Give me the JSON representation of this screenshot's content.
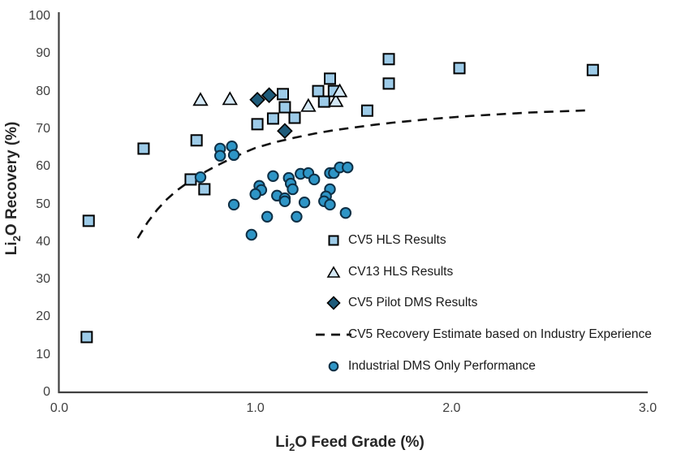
{
  "chart_data": {
    "type": "scatter",
    "title": "",
    "xlabel_parts": {
      "prefix": "Li",
      "sub": "2",
      "suffix": "O Feed Grade (%)"
    },
    "ylabel_parts": {
      "prefix": "Li",
      "sub": "2",
      "suffix": "O Recovery (%)"
    },
    "x_axis": {
      "min": 0,
      "max": 3,
      "tick_labels": [
        "0.0",
        "1.0",
        "2.0",
        "3.0"
      ],
      "tick_values": [
        0,
        1,
        2,
        3
      ]
    },
    "y_axis": {
      "min": 0,
      "max": 100,
      "tick_labels": [
        "0",
        "10",
        "20",
        "30",
        "40",
        "50",
        "60",
        "70",
        "80",
        "90",
        "100"
      ],
      "tick_values": [
        0,
        10,
        20,
        30,
        40,
        50,
        60,
        70,
        80,
        90,
        100
      ]
    },
    "grid": false,
    "legend_position": "inside-right-middle",
    "colors": {
      "axis": "#404040",
      "square_fill": "#9DCBE8",
      "triangle_fill": "#D3E7F4",
      "diamond_fill": "#1E5B7A",
      "circle_fill": "#2E95C6",
      "circle_stroke": "#0E2F45",
      "marker_stroke": "#000000",
      "estimate_line": "#111111"
    },
    "series": [
      {
        "name": "CV5 HLS Results",
        "marker": "square",
        "points": [
          [
            0.15,
            45.6
          ],
          [
            0.14,
            14.7
          ],
          [
            0.43,
            64.8
          ],
          [
            0.7,
            67.0
          ],
          [
            0.67,
            56.6
          ],
          [
            0.74,
            54.0
          ],
          [
            1.01,
            71.3
          ],
          [
            1.09,
            72.8
          ],
          [
            1.14,
            79.3
          ],
          [
            1.15,
            75.8
          ],
          [
            1.2,
            73.0
          ],
          [
            1.32,
            80.1
          ],
          [
            1.35,
            77.3
          ],
          [
            1.38,
            83.4
          ],
          [
            1.4,
            80.1
          ],
          [
            1.57,
            74.9
          ],
          [
            1.68,
            88.6
          ],
          [
            1.68,
            82.1
          ],
          [
            2.04,
            86.2
          ],
          [
            2.72,
            85.7
          ]
        ]
      },
      {
        "name": "CV13 HLS Results",
        "marker": "triangle",
        "points": [
          [
            0.72,
            77.8
          ],
          [
            0.87,
            78.0
          ],
          [
            1.27,
            76.2
          ],
          [
            1.41,
            77.5
          ],
          [
            1.43,
            80.1
          ]
        ]
      },
      {
        "name": "CV5 Pilot DMS Results",
        "marker": "diamond",
        "points": [
          [
            1.01,
            77.8
          ],
          [
            1.07,
            79.0
          ],
          [
            1.15,
            69.5
          ]
        ]
      },
      {
        "name": "CV5 Recovery Estimate based on Industry Experience",
        "marker": "dashed-line",
        "curve_points": [
          [
            0.4,
            41.0
          ],
          [
            0.45,
            45.2
          ],
          [
            0.5,
            48.6
          ],
          [
            0.55,
            51.4
          ],
          [
            0.6,
            53.7
          ],
          [
            0.65,
            55.6
          ],
          [
            0.7,
            57.3
          ],
          [
            0.75,
            58.8
          ],
          [
            0.8,
            60.2
          ],
          [
            0.85,
            61.5
          ],
          [
            0.9,
            62.7
          ],
          [
            0.95,
            63.9
          ],
          [
            1.0,
            65.0
          ],
          [
            1.1,
            66.5
          ],
          [
            1.2,
            67.7
          ],
          [
            1.3,
            68.8
          ],
          [
            1.4,
            69.7
          ],
          [
            1.5,
            70.4
          ],
          [
            1.6,
            71.1
          ],
          [
            1.7,
            71.7
          ],
          [
            1.8,
            72.2
          ],
          [
            1.9,
            72.7
          ],
          [
            2.0,
            73.1
          ],
          [
            2.1,
            73.5
          ],
          [
            2.2,
            73.8
          ],
          [
            2.3,
            74.1
          ],
          [
            2.4,
            74.4
          ],
          [
            2.5,
            74.6
          ],
          [
            2.6,
            74.8
          ],
          [
            2.7,
            75.0
          ]
        ]
      },
      {
        "name": "Industrial DMS Only Performance",
        "marker": "circle",
        "points": [
          [
            0.72,
            57.2
          ],
          [
            0.82,
            64.8
          ],
          [
            0.88,
            65.4
          ],
          [
            0.82,
            62.9
          ],
          [
            0.89,
            63.1
          ],
          [
            0.89,
            49.9
          ],
          [
            0.98,
            41.9
          ],
          [
            1.02,
            54.9
          ],
          [
            1.03,
            53.8
          ],
          [
            1.0,
            52.7
          ],
          [
            1.09,
            57.5
          ],
          [
            1.17,
            57.0
          ],
          [
            1.18,
            55.5
          ],
          [
            1.23,
            58.1
          ],
          [
            1.27,
            58.3
          ],
          [
            1.3,
            56.6
          ],
          [
            1.19,
            54.0
          ],
          [
            1.11,
            52.3
          ],
          [
            1.15,
            51.6
          ],
          [
            1.15,
            50.8
          ],
          [
            1.25,
            50.5
          ],
          [
            1.06,
            46.7
          ],
          [
            1.21,
            46.7
          ],
          [
            1.38,
            58.3
          ],
          [
            1.4,
            58.3
          ],
          [
            1.43,
            59.8
          ],
          [
            1.47,
            59.8
          ],
          [
            1.38,
            54.0
          ],
          [
            1.36,
            52.1
          ],
          [
            1.35,
            50.8
          ],
          [
            1.38,
            49.9
          ],
          [
            1.46,
            47.7
          ]
        ]
      }
    ]
  }
}
